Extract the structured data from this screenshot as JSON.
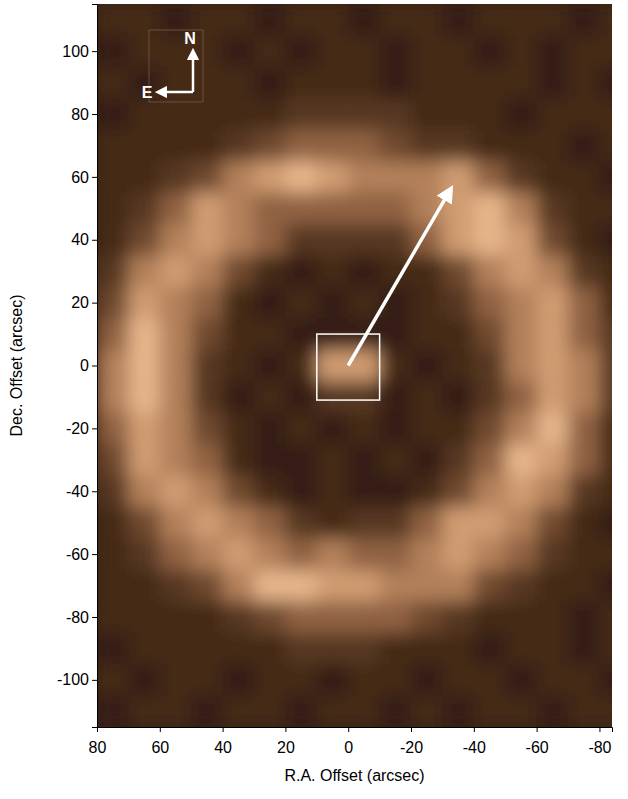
{
  "chart_data": {
    "type": "heatmap",
    "x_label": "R.A. Offset (arcsec)",
    "y_label": "Dec. Offset (arcsec)",
    "xlim": [
      80,
      -84
    ],
    "ylim": [
      -115,
      115
    ],
    "xticks": [
      80,
      60,
      40,
      20,
      0,
      -20,
      -40,
      -60,
      -80
    ],
    "yticks": [
      100,
      80,
      60,
      40,
      20,
      0,
      -20,
      -40,
      -60,
      -80,
      -100
    ],
    "zlim": [
      0,
      9
    ],
    "x": [
      75,
      65,
      55,
      45,
      35,
      25,
      15,
      5,
      -5,
      -15,
      -25,
      -35,
      -45,
      -55,
      -65,
      -75,
      -85
    ],
    "y": [
      110,
      100,
      90,
      80,
      70,
      60,
      50,
      40,
      30,
      20,
      10,
      0,
      -10,
      -20,
      -30,
      -40,
      -50,
      -60,
      -70,
      -80,
      -90,
      -100,
      -110
    ],
    "values": [
      [
        2,
        2,
        1,
        2,
        2,
        1,
        2,
        2,
        1,
        2,
        2,
        1,
        2,
        2,
        2,
        1,
        2
      ],
      [
        1,
        2,
        2,
        2,
        1,
        2,
        1,
        2,
        2,
        1,
        2,
        2,
        1,
        2,
        1,
        2,
        2
      ],
      [
        2,
        1,
        2,
        2,
        2,
        1,
        2,
        2,
        2,
        1,
        2,
        2,
        2,
        2,
        1,
        2,
        1
      ],
      [
        1,
        2,
        2,
        2,
        2,
        2,
        3,
        3,
        3,
        3,
        2,
        2,
        2,
        1,
        2,
        2,
        2
      ],
      [
        2,
        2,
        2,
        2,
        3,
        4,
        5,
        5,
        5,
        4,
        3,
        3,
        2,
        2,
        2,
        1,
        2
      ],
      [
        2,
        2,
        3,
        4,
        6,
        7,
        8,
        7,
        6,
        6,
        6,
        7,
        5,
        3,
        2,
        2,
        1
      ],
      [
        2,
        3,
        5,
        7,
        6,
        5,
        5,
        5,
        5,
        5,
        6,
        7,
        8,
        6,
        3,
        2,
        2
      ],
      [
        2,
        4,
        6,
        7,
        6,
        5,
        3,
        3,
        3,
        3,
        5,
        7,
        8,
        7,
        4,
        2,
        1
      ],
      [
        3,
        6,
        7,
        6,
        4,
        2,
        1,
        2,
        1,
        2,
        2,
        4,
        6,
        7,
        6,
        3,
        2
      ],
      [
        4,
        7,
        6,
        5,
        2,
        1,
        2,
        1,
        2,
        1,
        2,
        3,
        5,
        6,
        7,
        5,
        2
      ],
      [
        5,
        8,
        6,
        4,
        2,
        2,
        1,
        1,
        1,
        1,
        2,
        2,
        4,
        6,
        7,
        5,
        3
      ],
      [
        6,
        8,
        6,
        3,
        2,
        1,
        2,
        7,
        7,
        2,
        1,
        2,
        3,
        6,
        7,
        6,
        3
      ],
      [
        6,
        8,
        6,
        3,
        1,
        2,
        1,
        3,
        3,
        1,
        2,
        1,
        3,
        5,
        7,
        6,
        3
      ],
      [
        5,
        7,
        6,
        4,
        2,
        1,
        2,
        1,
        2,
        1,
        2,
        2,
        4,
        6,
        8,
        5,
        2
      ],
      [
        4,
        7,
        6,
        5,
        2,
        1,
        1,
        2,
        1,
        2,
        1,
        3,
        5,
        8,
        7,
        5,
        2
      ],
      [
        3,
        6,
        7,
        6,
        4,
        2,
        1,
        2,
        1,
        1,
        2,
        4,
        6,
        7,
        6,
        3,
        2
      ],
      [
        2,
        4,
        6,
        7,
        6,
        5,
        3,
        2,
        3,
        3,
        5,
        7,
        7,
        6,
        4,
        2,
        1
      ],
      [
        2,
        3,
        5,
        6,
        7,
        6,
        5,
        6,
        5,
        5,
        6,
        7,
        6,
        5,
        3,
        2,
        2
      ],
      [
        2,
        2,
        3,
        4,
        6,
        8,
        8,
        7,
        7,
        6,
        6,
        6,
        4,
        3,
        2,
        2,
        1
      ],
      [
        2,
        2,
        2,
        2,
        3,
        4,
        5,
        5,
        5,
        5,
        4,
        3,
        2,
        2,
        2,
        1,
        2
      ],
      [
        1,
        2,
        2,
        2,
        2,
        2,
        3,
        3,
        3,
        2,
        2,
        2,
        1,
        2,
        2,
        1,
        2
      ],
      [
        2,
        1,
        2,
        2,
        1,
        2,
        2,
        1,
        2,
        2,
        1,
        2,
        2,
        1,
        2,
        2,
        1
      ],
      [
        1,
        2,
        2,
        1,
        2,
        2,
        1,
        2,
        2,
        1,
        2,
        1,
        2,
        2,
        1,
        2,
        2
      ]
    ],
    "annotations": {
      "arrow": {
        "x": [
          0,
          -32
        ],
        "y": [
          0,
          55
        ]
      },
      "box": {
        "x": [
          10,
          -10
        ],
        "y": [
          10,
          -11
        ]
      }
    },
    "compass": {
      "north": "N",
      "east": "E"
    }
  }
}
